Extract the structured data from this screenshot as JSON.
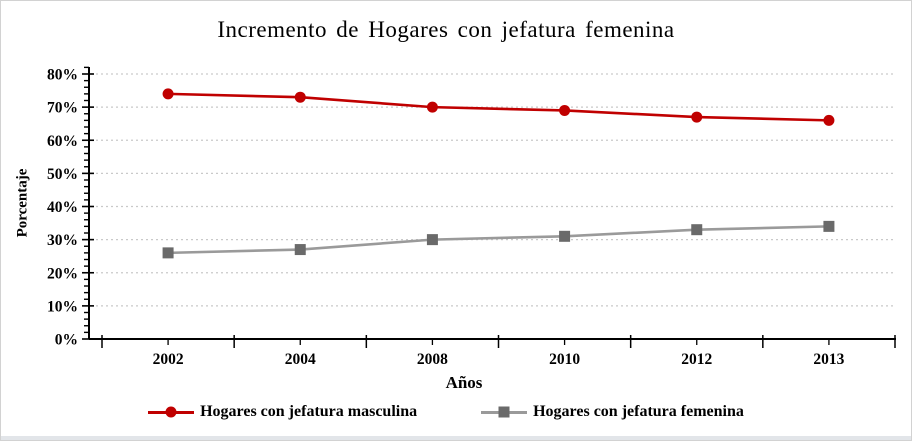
{
  "window": {
    "background": "#ffffff",
    "border_color": "#d2d2d2",
    "bottom_strip_color": "#e2e5e9"
  },
  "chart_data": {
    "type": "line",
    "title": "Incremento de Hogares con jefatura femenina",
    "xlabel": "Años",
    "ylabel": "Porcentaje",
    "categories": [
      "2002",
      "2004",
      "2008",
      "2010",
      "2012",
      "2013"
    ],
    "series": [
      {
        "name": "Hogares con jefatura masculina",
        "values": [
          74,
          73,
          70,
          69,
          67,
          66
        ],
        "color": "#c00000",
        "marker": "circle",
        "marker_color": "#c00000"
      },
      {
        "name": "Hogares con jefatura femenina",
        "values": [
          26,
          27,
          30,
          31,
          33,
          34
        ],
        "color": "#9a9a9a",
        "marker": "square",
        "marker_color": "#6a6a6a"
      }
    ],
    "ylim": [
      0,
      80
    ],
    "y_tick_step": 10,
    "y_tick_labels": [
      "0%",
      "10%",
      "20%",
      "30%",
      "40%",
      "50%",
      "60%",
      "70%",
      "80%"
    ],
    "y_minor_tick_step": 2,
    "grid": "dotted horizontal",
    "grid_color": "#c9c9c9",
    "axis_color": "#000000",
    "legend_position": "bottom"
  }
}
